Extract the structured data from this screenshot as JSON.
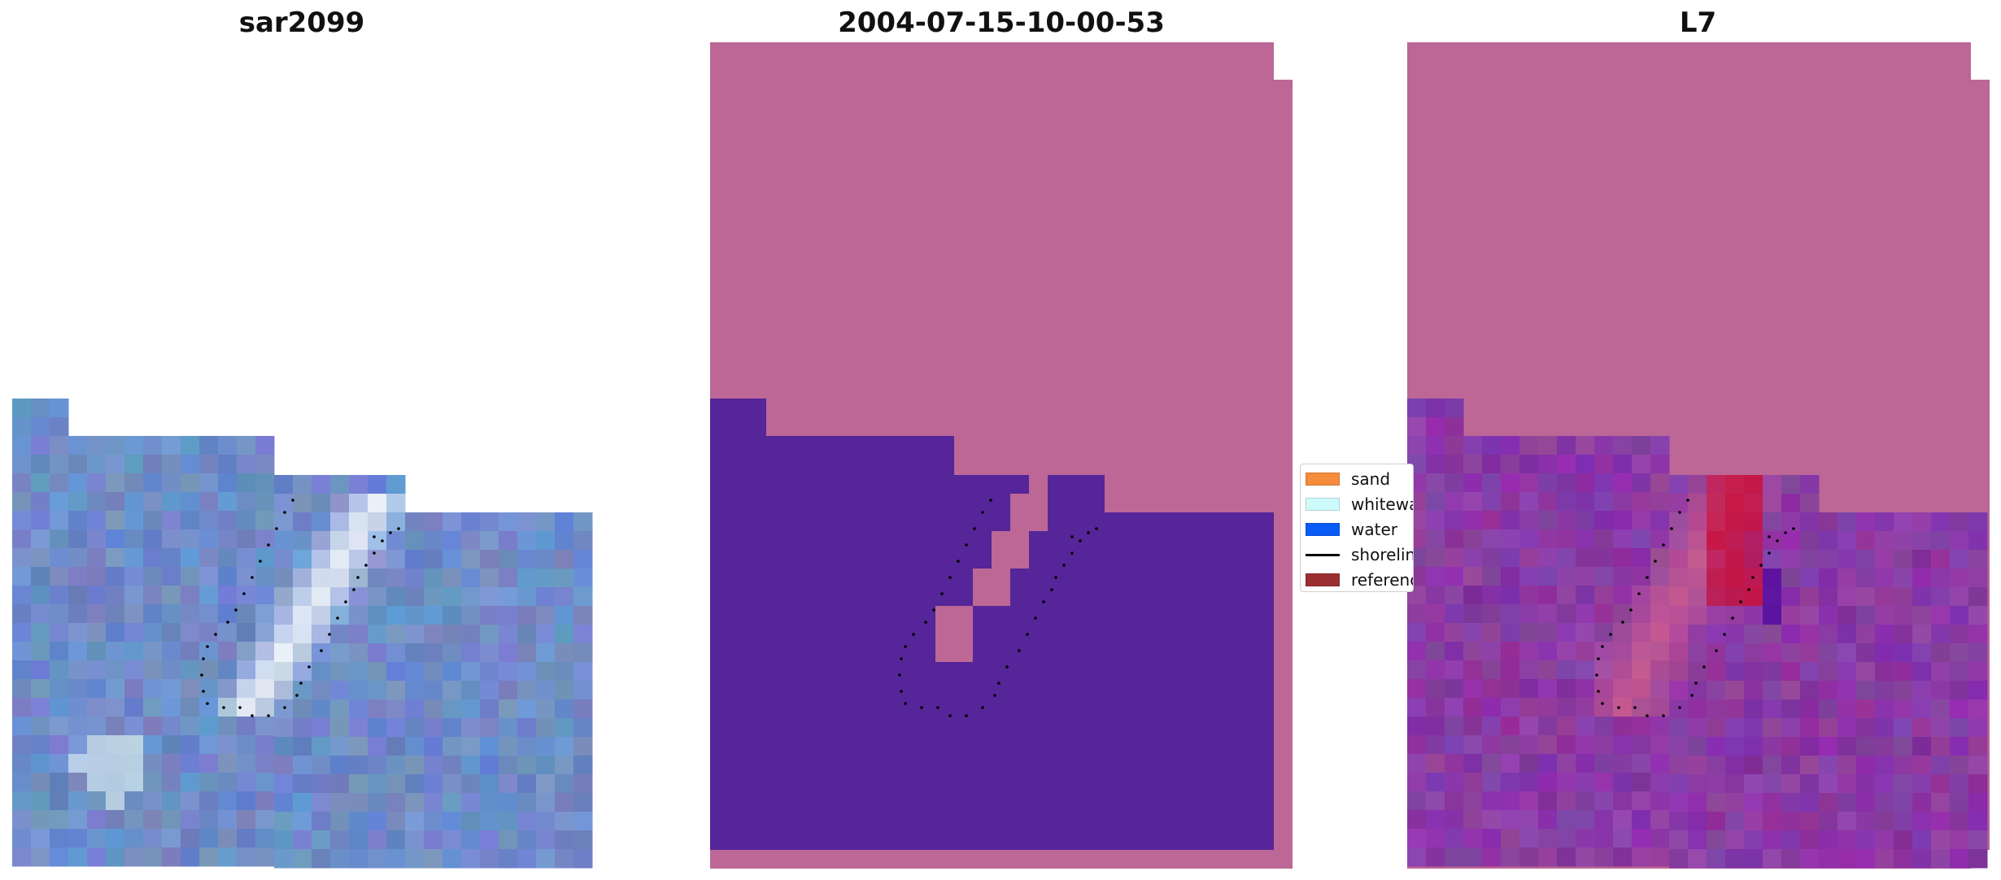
{
  "panels": [
    {
      "title": "sar2099"
    },
    {
      "title": "2004-07-15-10-00-53"
    },
    {
      "title": "L7"
    }
  ],
  "legend": {
    "items": [
      {
        "label": "sand",
        "color": "#f58c3c",
        "kind": "patch"
      },
      {
        "label": "whitewater",
        "color": "#cdfbfb",
        "kind": "patch"
      },
      {
        "label": "water",
        "color": "#0b5cf5",
        "kind": "patch"
      },
      {
        "label": "shoreline",
        "color": "#000000",
        "kind": "line"
      },
      {
        "label": "reference shoreline",
        "color": "#9b2f2f",
        "kind": "patch"
      }
    ]
  },
  "colors": {
    "rgb_base": "#6e8cc8",
    "classified_land": "#bc6796",
    "classified_water": "#552599",
    "ndwi_low": "#8a3aa4",
    "ndwi_high": "#c8103c"
  }
}
